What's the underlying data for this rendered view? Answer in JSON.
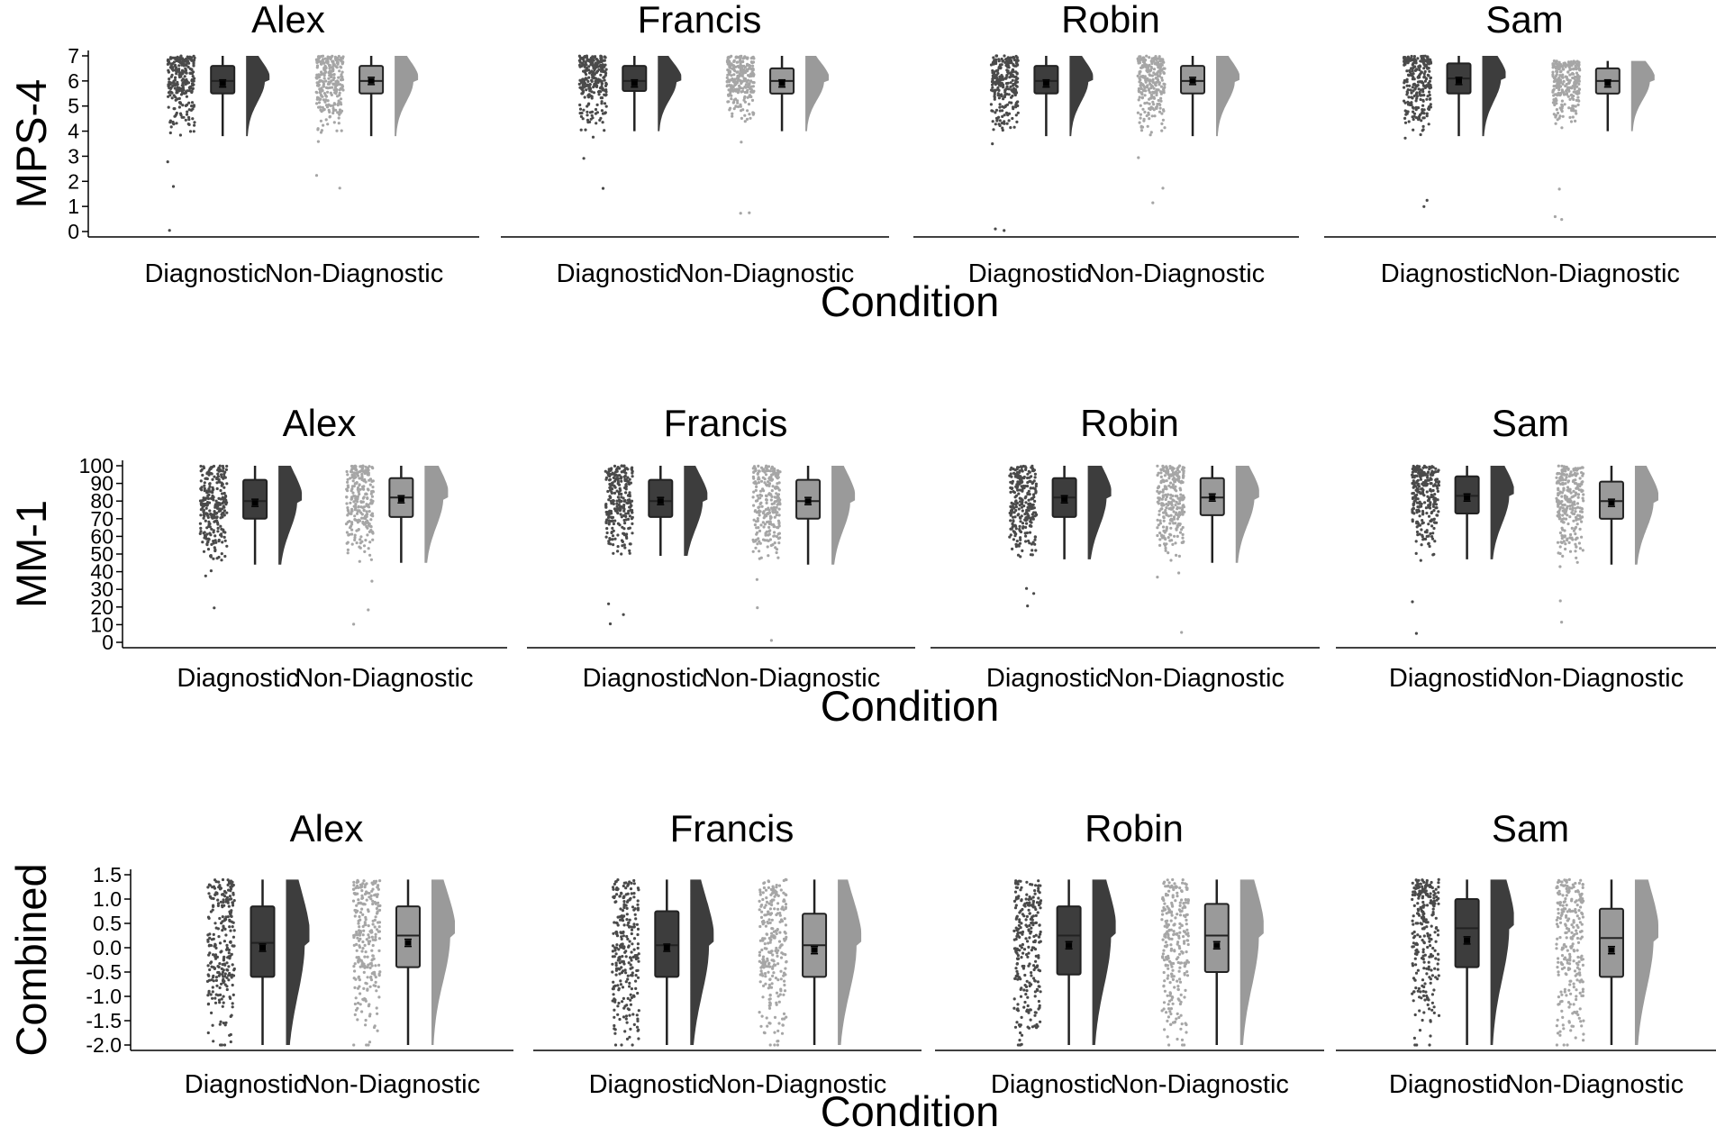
{
  "chart_data": [
    {
      "type": "raincloud",
      "ylabel": "MPS-4",
      "xlabel": "Condition",
      "ylim": [
        0,
        7
      ],
      "yticks": [
        "0",
        "1",
        "2",
        "3",
        "4",
        "5",
        "6",
        "7"
      ],
      "panels": [
        "Alex",
        "Francis",
        "Robin",
        "Sam"
      ],
      "categories": [
        "Diagnostic",
        "Non-Diagnostic"
      ],
      "series": [
        {
          "panel": "Alex",
          "condition": "Diagnostic",
          "q1": 5.5,
          "median": 6.0,
          "q3": 6.6,
          "whisker_low": 3.8,
          "whisker_high": 7.0,
          "mean": 5.9
        },
        {
          "panel": "Alex",
          "condition": "Non-Diagnostic",
          "q1": 5.5,
          "median": 6.0,
          "q3": 6.6,
          "whisker_low": 3.8,
          "whisker_high": 7.0,
          "mean": 6.0
        },
        {
          "panel": "Francis",
          "condition": "Diagnostic",
          "q1": 5.6,
          "median": 6.0,
          "q3": 6.6,
          "whisker_low": 4.0,
          "whisker_high": 7.0,
          "mean": 5.9
        },
        {
          "panel": "Francis",
          "condition": "Non-Diagnostic",
          "q1": 5.5,
          "median": 6.0,
          "q3": 6.5,
          "whisker_low": 4.0,
          "whisker_high": 7.0,
          "mean": 5.9
        },
        {
          "panel": "Robin",
          "condition": "Diagnostic",
          "q1": 5.5,
          "median": 6.0,
          "q3": 6.6,
          "whisker_low": 3.8,
          "whisker_high": 7.0,
          "mean": 5.9
        },
        {
          "panel": "Robin",
          "condition": "Non-Diagnostic",
          "q1": 5.5,
          "median": 6.0,
          "q3": 6.6,
          "whisker_low": 3.8,
          "whisker_high": 7.0,
          "mean": 6.0
        },
        {
          "panel": "Sam",
          "condition": "Diagnostic",
          "q1": 5.5,
          "median": 6.1,
          "q3": 6.7,
          "whisker_low": 3.8,
          "whisker_high": 7.0,
          "mean": 6.0
        },
        {
          "panel": "Sam",
          "condition": "Non-Diagnostic",
          "q1": 5.5,
          "median": 6.0,
          "q3": 6.5,
          "whisker_low": 4.0,
          "whisker_high": 6.8,
          "mean": 5.9
        }
      ]
    },
    {
      "type": "raincloud",
      "ylabel": "MM-1",
      "xlabel": "Condition",
      "ylim": [
        0,
        100
      ],
      "yticks": [
        "0",
        "10",
        "20",
        "30",
        "40",
        "50",
        "60",
        "70",
        "80",
        "90",
        "100"
      ],
      "panels": [
        "Alex",
        "Francis",
        "Robin",
        "Sam"
      ],
      "categories": [
        "Diagnostic",
        "Non-Diagnostic"
      ],
      "series": [
        {
          "panel": "Alex",
          "condition": "Diagnostic",
          "q1": 70,
          "median": 80,
          "q3": 92,
          "whisker_low": 44,
          "whisker_high": 100,
          "mean": 79
        },
        {
          "panel": "Alex",
          "condition": "Non-Diagnostic",
          "q1": 71,
          "median": 82,
          "q3": 93,
          "whisker_low": 45,
          "whisker_high": 100,
          "mean": 81
        },
        {
          "panel": "Francis",
          "condition": "Diagnostic",
          "q1": 71,
          "median": 80,
          "q3": 92,
          "whisker_low": 49,
          "whisker_high": 100,
          "mean": 80
        },
        {
          "panel": "Francis",
          "condition": "Non-Diagnostic",
          "q1": 70,
          "median": 80,
          "q3": 92,
          "whisker_low": 44,
          "whisker_high": 100,
          "mean": 80
        },
        {
          "panel": "Robin",
          "condition": "Diagnostic",
          "q1": 71,
          "median": 82,
          "q3": 93,
          "whisker_low": 47,
          "whisker_high": 100,
          "mean": 81
        },
        {
          "panel": "Robin",
          "condition": "Non-Diagnostic",
          "q1": 72,
          "median": 82,
          "q3": 93,
          "whisker_low": 45,
          "whisker_high": 100,
          "mean": 82
        },
        {
          "panel": "Sam",
          "condition": "Diagnostic",
          "q1": 73,
          "median": 83,
          "q3": 94,
          "whisker_low": 47,
          "whisker_high": 100,
          "mean": 82
        },
        {
          "panel": "Sam",
          "condition": "Non-Diagnostic",
          "q1": 70,
          "median": 80,
          "q3": 91,
          "whisker_low": 44,
          "whisker_high": 100,
          "mean": 79
        }
      ]
    },
    {
      "type": "raincloud",
      "ylabel": "Combined",
      "xlabel": "Condition",
      "ylim": [
        -2.0,
        1.5
      ],
      "yticks": [
        "-2.0",
        "-1.5",
        "-1.0",
        "-0.5",
        "0.0",
        "0.5",
        "1.0",
        "1.5"
      ],
      "panels": [
        "Alex",
        "Francis",
        "Robin",
        "Sam"
      ],
      "categories": [
        "Diagnostic",
        "Non-Diagnostic"
      ],
      "series": [
        {
          "panel": "Alex",
          "condition": "Diagnostic",
          "q1": -0.6,
          "median": 0.1,
          "q3": 0.85,
          "whisker_low": -2.0,
          "whisker_high": 1.4,
          "mean": 0.0
        },
        {
          "panel": "Alex",
          "condition": "Non-Diagnostic",
          "q1": -0.4,
          "median": 0.25,
          "q3": 0.85,
          "whisker_low": -2.0,
          "whisker_high": 1.4,
          "mean": 0.1
        },
        {
          "panel": "Francis",
          "condition": "Diagnostic",
          "q1": -0.6,
          "median": 0.05,
          "q3": 0.75,
          "whisker_low": -2.0,
          "whisker_high": 1.4,
          "mean": 0.0
        },
        {
          "panel": "Francis",
          "condition": "Non-Diagnostic",
          "q1": -0.6,
          "median": 0.05,
          "q3": 0.7,
          "whisker_low": -2.0,
          "whisker_high": 1.4,
          "mean": -0.05
        },
        {
          "panel": "Robin",
          "condition": "Diagnostic",
          "q1": -0.55,
          "median": 0.25,
          "q3": 0.85,
          "whisker_low": -2.0,
          "whisker_high": 1.4,
          "mean": 0.05
        },
        {
          "panel": "Robin",
          "condition": "Non-Diagnostic",
          "q1": -0.5,
          "median": 0.25,
          "q3": 0.9,
          "whisker_low": -2.0,
          "whisker_high": 1.4,
          "mean": 0.05
        },
        {
          "panel": "Sam",
          "condition": "Diagnostic",
          "q1": -0.4,
          "median": 0.4,
          "q3": 1.0,
          "whisker_low": -2.0,
          "whisker_high": 1.4,
          "mean": 0.15
        },
        {
          "panel": "Sam",
          "condition": "Non-Diagnostic",
          "q1": -0.6,
          "median": 0.2,
          "q3": 0.8,
          "whisker_low": -2.0,
          "whisker_high": 1.4,
          "mean": -0.05
        }
      ]
    }
  ],
  "colors": {
    "diagnostic_fill": "#3d3d3d",
    "diagnostic_dots": "#4a4a4a",
    "nondiagnostic_fill": "#9a9a9a",
    "nondiagnostic_dots": "#a6a6a6",
    "axis": "#000000"
  }
}
